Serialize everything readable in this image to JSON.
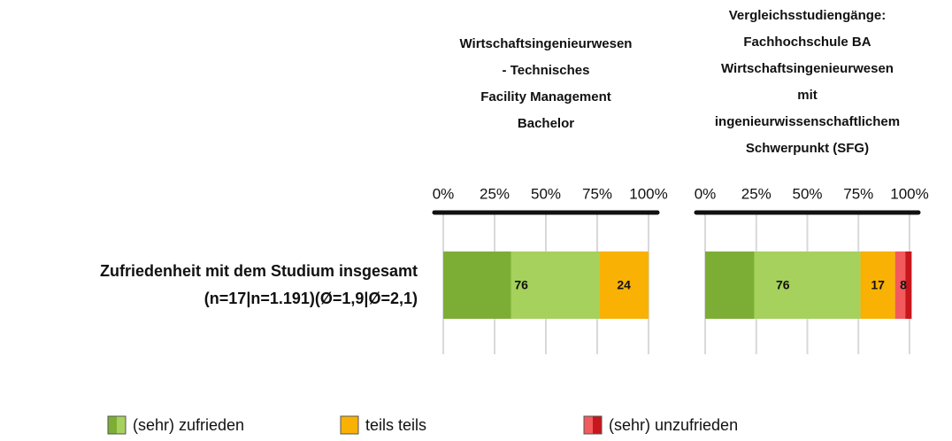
{
  "chart_data": {
    "type": "stacked-bar",
    "category": "Zufriedenheit mit dem Studium insgesamt",
    "category_detail": "(n=17|n=1.191)(Ø=1,9|Ø=2,1)",
    "panels": [
      {
        "title": [
          "Wirtschaftsingenieurwesen",
          "- Technisches",
          "Facility Management",
          "Bachelor"
        ]
      },
      {
        "title": [
          "Vergleichsstudiengänge:",
          "Fachhochschule BA",
          "Wirtschaftsingenieurwesen",
          "mit",
          "ingenieurwissenschaftlichem",
          "Schwerpunkt (SFG)"
        ]
      }
    ],
    "xlim": [
      0,
      100
    ],
    "xticks": [
      {
        "value": 0,
        "label": "0%"
      },
      {
        "value": 25,
        "label": "25%"
      },
      {
        "value": 50,
        "label": "50%"
      },
      {
        "value": 75,
        "label": "75%"
      },
      {
        "value": 100,
        "label": "100%"
      }
    ],
    "grid": true,
    "series": [
      {
        "name": "(sehr) zufrieden",
        "color": "#a5d15c",
        "values": [
          76,
          76
        ],
        "parts": [
          {
            "color": "#7cae35",
            "values": [
              33,
              24
            ]
          },
          {
            "color": "#a5d15c",
            "values": [
              43,
              52
            ]
          }
        ]
      },
      {
        "name": "teils teils",
        "color": "#f9b104",
        "values": [
          24,
          17
        ]
      },
      {
        "name": "(sehr) unzufrieden",
        "color": "#f25a5e",
        "values": [
          null,
          8
        ],
        "parts": [
          {
            "color": "#f25a5e",
            "values": [
              null,
              5
            ]
          },
          {
            "color": "#c8161d",
            "values": [
              null,
              3
            ]
          }
        ]
      }
    ]
  }
}
